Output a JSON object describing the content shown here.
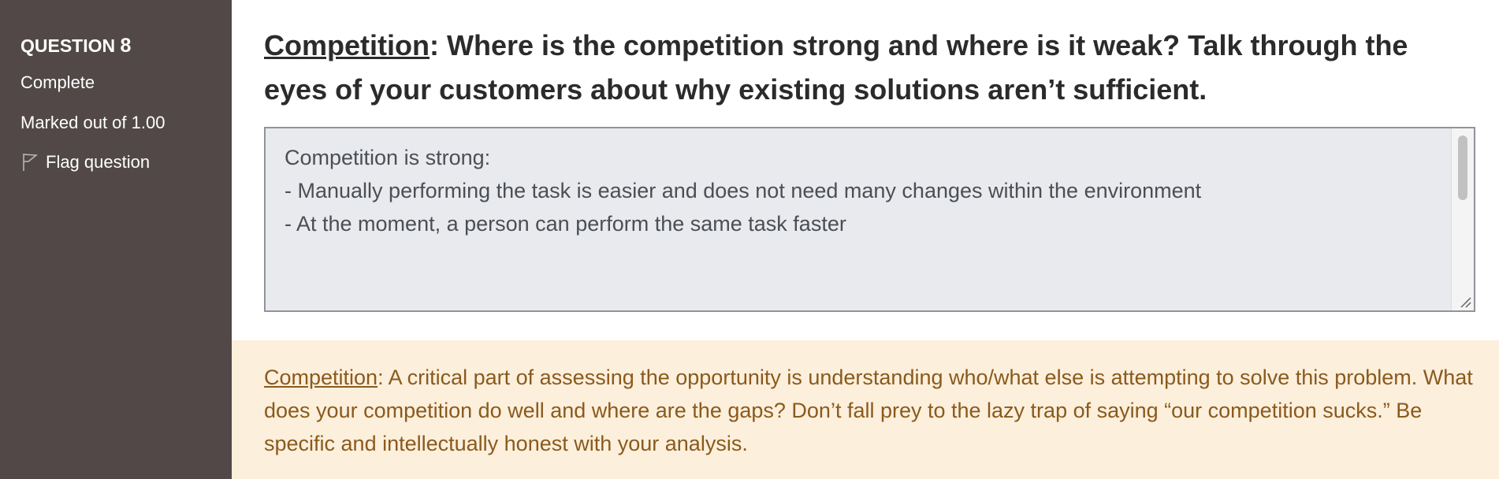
{
  "sidebar": {
    "question_label": "QUESTION",
    "question_number": "8",
    "status": "Complete",
    "marks": "Marked out of 1.00",
    "flag": "Flag question"
  },
  "question": {
    "term": "Competition",
    "text": ": Where is the competition strong and where is it weak? Talk through the eyes of your customers about why existing solutions aren’t sufficient."
  },
  "answer": {
    "lines": [
      "Competition is strong:",
      "- Manually performing the task is easier and does not need many changes within the environment",
      "- At the moment, a person can perform the same task faster"
    ]
  },
  "feedback": {
    "term": "Competition",
    "text": ": A critical part of assessing the opportunity is understanding who/what else is attempting to solve this problem. What does your competition do well and where are the gaps? Don’t fall prey to the lazy trap of saying “our competition sucks.” Be specific and intellectually honest with your analysis."
  }
}
